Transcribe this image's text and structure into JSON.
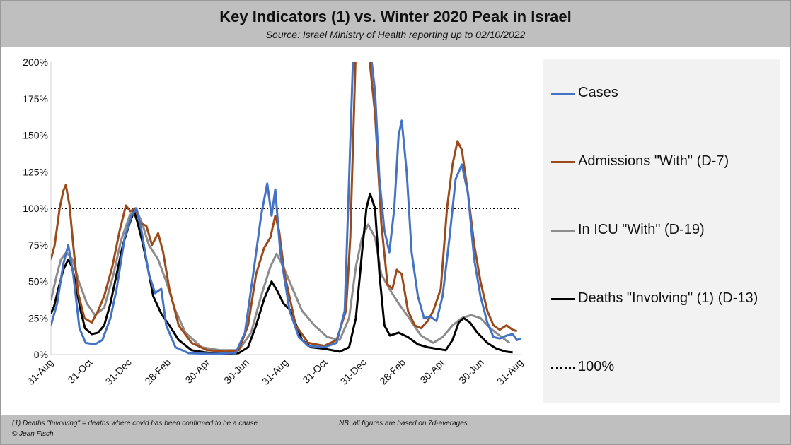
{
  "header": {
    "title": "Key Indicators (1) vs. Winter 2020 Peak in Israel",
    "subtitle": "Source: Israel Ministry of Health reporting up to 02/10/2022"
  },
  "footer": {
    "note1": "(1) Deaths \"Involving\" = deaths where covid has been confirmed to be a cause",
    "note2": "NB: all figures are based on 7d-averages",
    "copyright": "© Jean Fisch"
  },
  "chart_data": {
    "type": "line",
    "title": "Key Indicators (1) vs. Winter 2020 Peak in Israel",
    "subtitle": "Source: Israel Ministry of Health reporting up to 02/10/2022",
    "x_ticks": [
      "31-Aug",
      "31-Oct",
      "31-Dec",
      "28-Feb",
      "30-Apr",
      "30-Jun",
      "31-Aug",
      "31-Oct",
      "31-Dec",
      "28-Feb",
      "30-Apr",
      "30-Jun",
      "31-Aug"
    ],
    "x_range": [
      "2020-08-31",
      "2022-09-28"
    ],
    "y_ticks": [
      "0%",
      "25%",
      "50%",
      "75%",
      "100%",
      "125%",
      "150%",
      "175%",
      "200%"
    ],
    "ylim": [
      0,
      200
    ],
    "grid": false,
    "legend_position": "right",
    "series": [
      {
        "name": "Cases",
        "color": "#4472c4",
        "points": [
          [
            "2020-08-31",
            20
          ],
          [
            "2020-09-10",
            35
          ],
          [
            "2020-09-20",
            62
          ],
          [
            "2020-09-28",
            75
          ],
          [
            "2020-10-06",
            55
          ],
          [
            "2020-10-16",
            18
          ],
          [
            "2020-10-26",
            8
          ],
          [
            "2020-11-10",
            7
          ],
          [
            "2020-11-22",
            10
          ],
          [
            "2020-12-05",
            25
          ],
          [
            "2020-12-15",
            45
          ],
          [
            "2020-12-28",
            80
          ],
          [
            "2021-01-08",
            95
          ],
          [
            "2021-01-16",
            100
          ],
          [
            "2021-01-24",
            85
          ],
          [
            "2021-02-05",
            55
          ],
          [
            "2021-02-15",
            42
          ],
          [
            "2021-02-25",
            45
          ],
          [
            "2021-03-05",
            20
          ],
          [
            "2021-03-20",
            5
          ],
          [
            "2021-04-10",
            1
          ],
          [
            "2021-05-15",
            0.5
          ],
          [
            "2021-06-25",
            1
          ],
          [
            "2021-07-10",
            15
          ],
          [
            "2021-07-25",
            60
          ],
          [
            "2021-08-05",
            95
          ],
          [
            "2021-08-15",
            117
          ],
          [
            "2021-08-22",
            95
          ],
          [
            "2021-08-28",
            113
          ],
          [
            "2021-09-05",
            70
          ],
          [
            "2021-09-20",
            30
          ],
          [
            "2021-10-05",
            12
          ],
          [
            "2021-10-20",
            6
          ],
          [
            "2021-11-15",
            5
          ],
          [
            "2021-12-05",
            8
          ],
          [
            "2021-12-18",
            30
          ],
          [
            "2021-12-25",
            120
          ],
          [
            "2022-01-01",
            210
          ],
          [
            "2022-01-10",
            210
          ],
          [
            "2022-01-20",
            210
          ],
          [
            "2022-01-28",
            210
          ],
          [
            "2022-02-05",
            180
          ],
          [
            "2022-02-12",
            120
          ],
          [
            "2022-02-20",
            85
          ],
          [
            "2022-02-28",
            70
          ],
          [
            "2022-03-08",
            100
          ],
          [
            "2022-03-15",
            150
          ],
          [
            "2022-03-20",
            160
          ],
          [
            "2022-03-28",
            125
          ],
          [
            "2022-04-05",
            70
          ],
          [
            "2022-04-15",
            40
          ],
          [
            "2022-04-25",
            25
          ],
          [
            "2022-05-05",
            26
          ],
          [
            "2022-05-15",
            23
          ],
          [
            "2022-05-25",
            40
          ],
          [
            "2022-06-05",
            80
          ],
          [
            "2022-06-15",
            120
          ],
          [
            "2022-06-25",
            130
          ],
          [
            "2022-07-05",
            110
          ],
          [
            "2022-07-15",
            65
          ],
          [
            "2022-07-25",
            40
          ],
          [
            "2022-08-05",
            22
          ],
          [
            "2022-08-15",
            12
          ],
          [
            "2022-08-25",
            11
          ],
          [
            "2022-09-05",
            13
          ],
          [
            "2022-09-15",
            14
          ],
          [
            "2022-09-22",
            10
          ],
          [
            "2022-09-28",
            11
          ]
        ]
      },
      {
        "name": "Admissions \"With\" (D-7)",
        "color": "#9c4a1a",
        "points": [
          [
            "2020-08-31",
            65
          ],
          [
            "2020-09-06",
            75
          ],
          [
            "2020-09-14",
            100
          ],
          [
            "2020-09-20",
            112
          ],
          [
            "2020-09-24",
            116
          ],
          [
            "2020-09-30",
            102
          ],
          [
            "2020-10-06",
            75
          ],
          [
            "2020-10-14",
            42
          ],
          [
            "2020-10-24",
            25
          ],
          [
            "2020-11-05",
            22
          ],
          [
            "2020-11-15",
            30
          ],
          [
            "2020-11-25",
            40
          ],
          [
            "2020-12-08",
            60
          ],
          [
            "2020-12-20",
            85
          ],
          [
            "2020-12-30",
            102
          ],
          [
            "2021-01-06",
            98
          ],
          [
            "2021-01-14",
            100
          ],
          [
            "2021-01-22",
            90
          ],
          [
            "2021-02-01",
            88
          ],
          [
            "2021-02-10",
            75
          ],
          [
            "2021-02-20",
            83
          ],
          [
            "2021-02-28",
            70
          ],
          [
            "2021-03-10",
            45
          ],
          [
            "2021-03-25",
            20
          ],
          [
            "2021-04-15",
            8
          ],
          [
            "2021-05-10",
            3
          ],
          [
            "2021-06-10",
            2
          ],
          [
            "2021-06-30",
            3
          ],
          [
            "2021-07-15",
            20
          ],
          [
            "2021-07-28",
            55
          ],
          [
            "2021-08-10",
            73
          ],
          [
            "2021-08-20",
            80
          ],
          [
            "2021-08-28",
            95
          ],
          [
            "2021-09-03",
            85
          ],
          [
            "2021-09-12",
            55
          ],
          [
            "2021-09-30",
            20
          ],
          [
            "2021-10-20",
            8
          ],
          [
            "2021-11-15",
            6
          ],
          [
            "2021-12-05",
            10
          ],
          [
            "2021-12-20",
            30
          ],
          [
            "2021-12-27",
            80
          ],
          [
            "2022-01-05",
            210
          ],
          [
            "2022-01-15",
            210
          ],
          [
            "2022-01-25",
            210
          ],
          [
            "2022-02-05",
            165
          ],
          [
            "2022-02-15",
            90
          ],
          [
            "2022-02-25",
            48
          ],
          [
            "2022-03-05",
            45
          ],
          [
            "2022-03-12",
            58
          ],
          [
            "2022-03-20",
            55
          ],
          [
            "2022-03-30",
            30
          ],
          [
            "2022-04-10",
            20
          ],
          [
            "2022-04-20",
            18
          ],
          [
            "2022-05-01",
            23
          ],
          [
            "2022-05-10",
            30
          ],
          [
            "2022-05-22",
            45
          ],
          [
            "2022-06-01",
            100
          ],
          [
            "2022-06-10",
            130
          ],
          [
            "2022-06-18",
            146
          ],
          [
            "2022-06-25",
            140
          ],
          [
            "2022-07-05",
            110
          ],
          [
            "2022-07-15",
            75
          ],
          [
            "2022-07-25",
            50
          ],
          [
            "2022-08-05",
            30
          ],
          [
            "2022-08-15",
            20
          ],
          [
            "2022-08-25",
            17
          ],
          [
            "2022-09-05",
            20
          ],
          [
            "2022-09-15",
            17
          ],
          [
            "2022-09-22",
            16
          ]
        ]
      },
      {
        "name": "In ICU \"With\" (D-19)",
        "color": "#8c8c8c",
        "points": [
          [
            "2020-08-31",
            37
          ],
          [
            "2020-09-08",
            52
          ],
          [
            "2020-09-16",
            65
          ],
          [
            "2020-09-25",
            70
          ],
          [
            "2020-10-05",
            65
          ],
          [
            "2020-10-15",
            50
          ],
          [
            "2020-10-28",
            35
          ],
          [
            "2020-11-10",
            27
          ],
          [
            "2020-11-25",
            32
          ],
          [
            "2020-12-10",
            55
          ],
          [
            "2020-12-22",
            78
          ],
          [
            "2021-01-05",
            95
          ],
          [
            "2021-01-15",
            100
          ],
          [
            "2021-01-25",
            90
          ],
          [
            "2021-02-05",
            75
          ],
          [
            "2021-02-20",
            65
          ],
          [
            "2021-03-05",
            50
          ],
          [
            "2021-03-20",
            30
          ],
          [
            "2021-04-05",
            15
          ],
          [
            "2021-05-01",
            5
          ],
          [
            "2021-06-01",
            3
          ],
          [
            "2021-06-30",
            3
          ],
          [
            "2021-07-20",
            15
          ],
          [
            "2021-08-05",
            40
          ],
          [
            "2021-08-20",
            60
          ],
          [
            "2021-08-30",
            69
          ],
          [
            "2021-09-10",
            60
          ],
          [
            "2021-09-25",
            45
          ],
          [
            "2021-10-10",
            30
          ],
          [
            "2021-10-30",
            20
          ],
          [
            "2021-11-20",
            12
          ],
          [
            "2021-12-10",
            10
          ],
          [
            "2021-12-25",
            25
          ],
          [
            "2022-01-05",
            60
          ],
          [
            "2022-01-15",
            80
          ],
          [
            "2022-01-25",
            89
          ],
          [
            "2022-02-05",
            80
          ],
          [
            "2022-02-15",
            55
          ],
          [
            "2022-02-28",
            45
          ],
          [
            "2022-03-15",
            35
          ],
          [
            "2022-04-01",
            25
          ],
          [
            "2022-04-20",
            13
          ],
          [
            "2022-05-10",
            8
          ],
          [
            "2022-05-25",
            12
          ],
          [
            "2022-06-10",
            20
          ],
          [
            "2022-06-25",
            25
          ],
          [
            "2022-07-10",
            27
          ],
          [
            "2022-07-25",
            25
          ],
          [
            "2022-08-10",
            18
          ],
          [
            "2022-08-25",
            13
          ],
          [
            "2022-09-10",
            8
          ]
        ]
      },
      {
        "name": "Deaths \"Involving\" (1) (D-13)",
        "color": "#000000",
        "points": [
          [
            "2020-08-31",
            28
          ],
          [
            "2020-09-05",
            33
          ],
          [
            "2020-09-12",
            45
          ],
          [
            "2020-09-20",
            58
          ],
          [
            "2020-09-28",
            65
          ],
          [
            "2020-10-04",
            60
          ],
          [
            "2020-10-10",
            48
          ],
          [
            "2020-10-18",
            30
          ],
          [
            "2020-10-25",
            18
          ],
          [
            "2020-11-05",
            14
          ],
          [
            "2020-11-15",
            15
          ],
          [
            "2020-11-25",
            20
          ],
          [
            "2020-12-05",
            35
          ],
          [
            "2020-12-15",
            55
          ],
          [
            "2020-12-25",
            75
          ],
          [
            "2021-01-05",
            90
          ],
          [
            "2021-01-12",
            98
          ],
          [
            "2021-01-18",
            90
          ],
          [
            "2021-01-25",
            78
          ],
          [
            "2021-02-03",
            60
          ],
          [
            "2021-02-12",
            40
          ],
          [
            "2021-02-25",
            28
          ],
          [
            "2021-03-10",
            20
          ],
          [
            "2021-03-25",
            10
          ],
          [
            "2021-04-15",
            3
          ],
          [
            "2021-05-15",
            1
          ],
          [
            "2021-06-10",
            0.5
          ],
          [
            "2021-06-30",
            1
          ],
          [
            "2021-07-15",
            5
          ],
          [
            "2021-07-28",
            20
          ],
          [
            "2021-08-10",
            38
          ],
          [
            "2021-08-22",
            50
          ],
          [
            "2021-09-01",
            43
          ],
          [
            "2021-09-10",
            35
          ],
          [
            "2021-09-22",
            30
          ],
          [
            "2021-10-01",
            20
          ],
          [
            "2021-10-10",
            10
          ],
          [
            "2021-10-25",
            5
          ],
          [
            "2021-11-15",
            4
          ],
          [
            "2021-12-10",
            2
          ],
          [
            "2021-12-25",
            5
          ],
          [
            "2022-01-05",
            25
          ],
          [
            "2022-01-15",
            70
          ],
          [
            "2022-01-22",
            100
          ],
          [
            "2022-01-28",
            110
          ],
          [
            "2022-02-05",
            100
          ],
          [
            "2022-02-12",
            55
          ],
          [
            "2022-02-20",
            20
          ],
          [
            "2022-03-01",
            13
          ],
          [
            "2022-03-15",
            15
          ],
          [
            "2022-03-30",
            12
          ],
          [
            "2022-04-15",
            7
          ],
          [
            "2022-05-01",
            5
          ],
          [
            "2022-05-15",
            4
          ],
          [
            "2022-05-30",
            3
          ],
          [
            "2022-06-10",
            10
          ],
          [
            "2022-06-20",
            22
          ],
          [
            "2022-06-28",
            25
          ],
          [
            "2022-07-08",
            22
          ],
          [
            "2022-07-20",
            15
          ],
          [
            "2022-08-05",
            8
          ],
          [
            "2022-08-20",
            4
          ],
          [
            "2022-09-05",
            2
          ],
          [
            "2022-09-15",
            1.5
          ]
        ]
      },
      {
        "name": "100%",
        "color": "#000000",
        "dashed": true,
        "points": [
          [
            "2020-08-31",
            100
          ],
          [
            "2022-09-28",
            100
          ]
        ]
      }
    ]
  }
}
